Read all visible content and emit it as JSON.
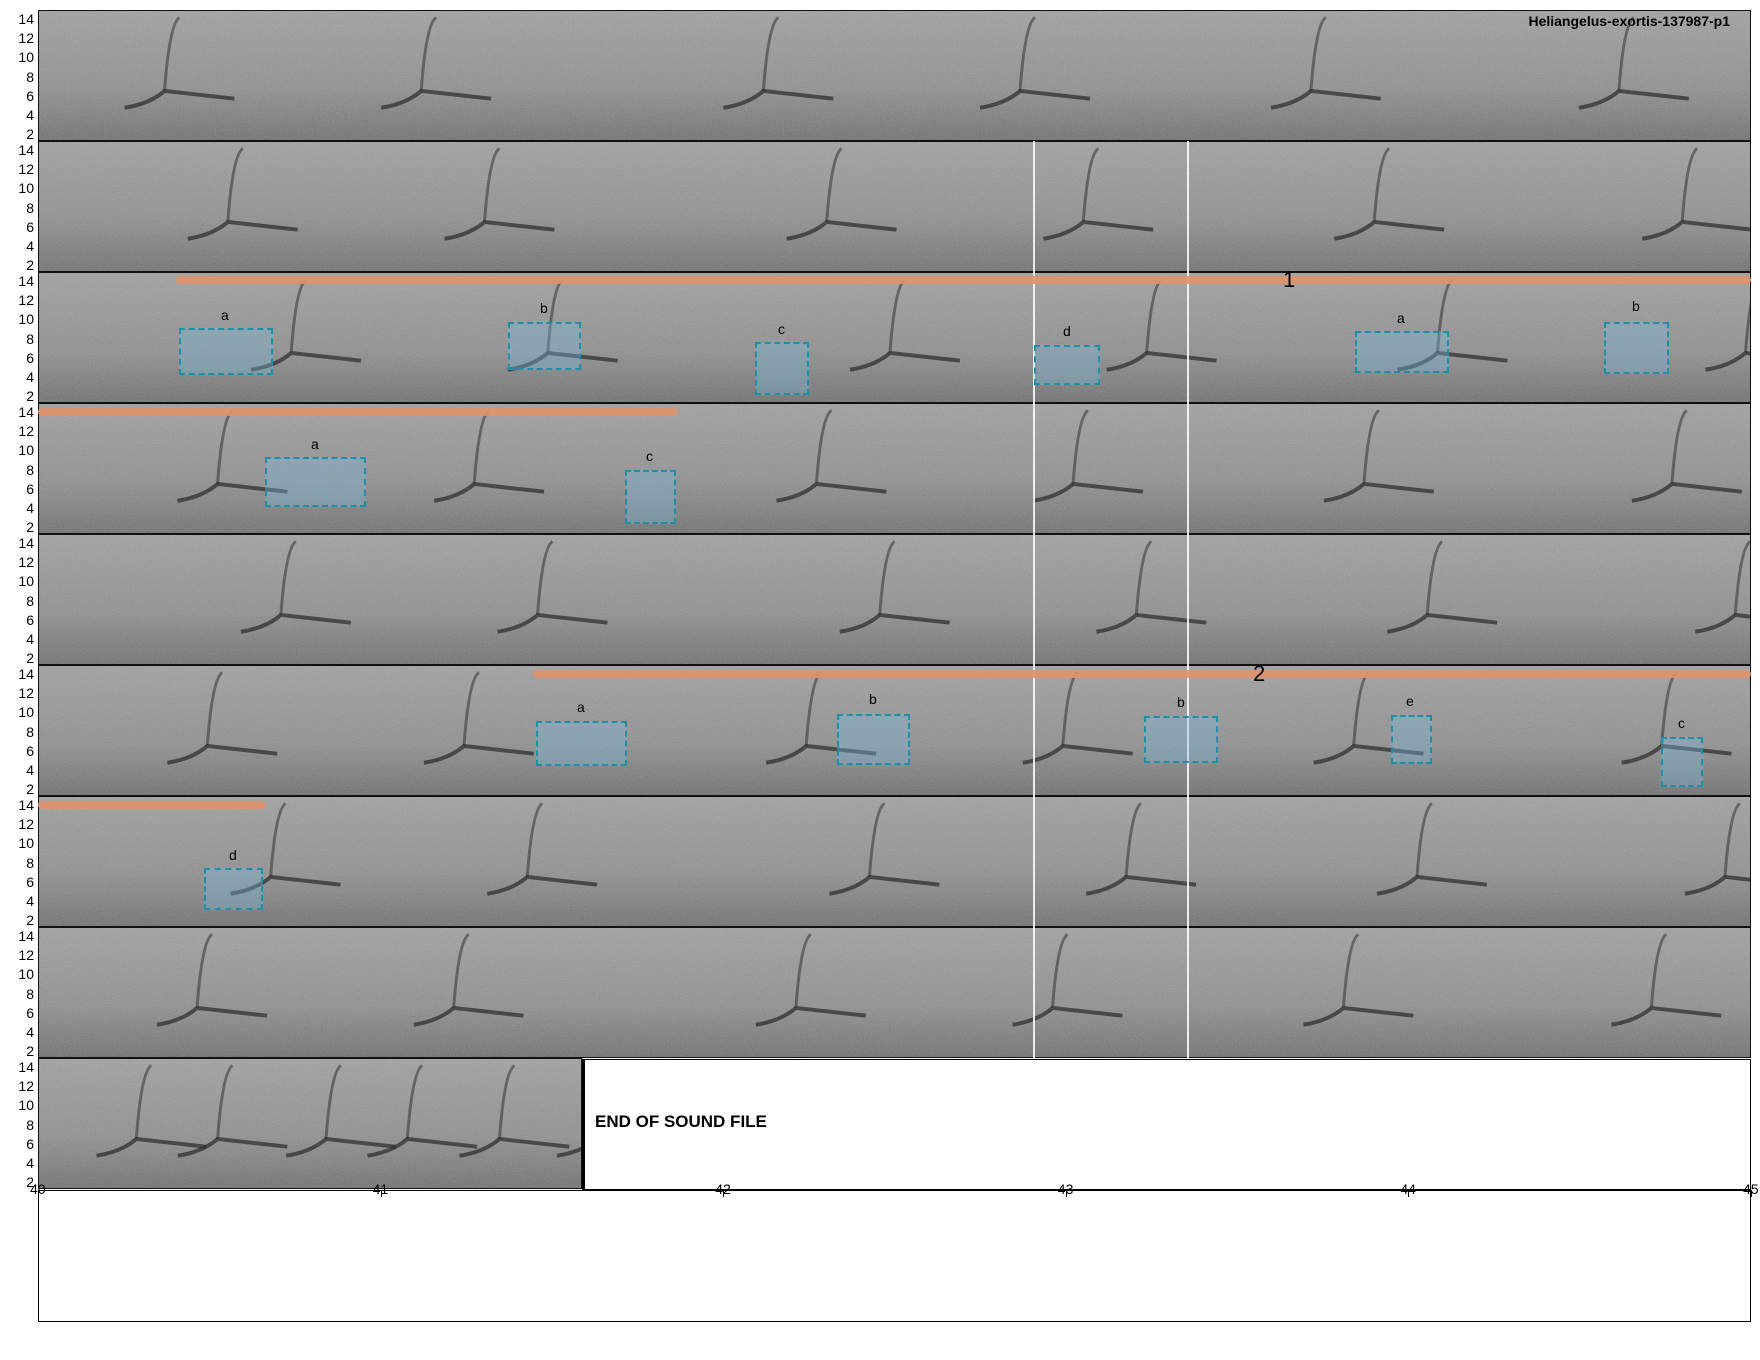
{
  "title": "Heliangelus-exortis-137987-p1",
  "end_label": "END OF SOUND FILE",
  "y_ticks": [
    "14",
    "12",
    "10",
    "8",
    "6",
    "4",
    "2"
  ],
  "x_ticks": [
    "40",
    "41",
    "42",
    "43",
    "44",
    "45"
  ],
  "song_labels": [
    "1",
    "2"
  ],
  "syllable_boxes": [
    {
      "label": "a"
    },
    {
      "label": "b"
    },
    {
      "label": "c"
    },
    {
      "label": "d"
    },
    {
      "label": "a"
    },
    {
      "label": "b"
    },
    {
      "label": "a"
    },
    {
      "label": "c"
    },
    {
      "label": "a"
    },
    {
      "label": "b"
    },
    {
      "label": "b"
    },
    {
      "label": "e"
    },
    {
      "label": "c"
    },
    {
      "label": "d"
    }
  ],
  "colors": {
    "song_bar": "#e0926a",
    "box_border": "#1f8fa8",
    "spectrogram_bg": "#8a8a8a"
  }
}
